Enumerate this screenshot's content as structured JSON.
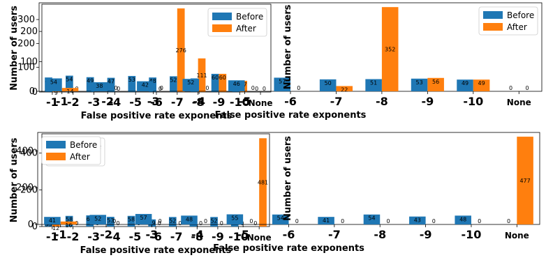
{
  "colors": {
    "before": "#1f77b4",
    "after": "#ff7f0e"
  },
  "chart_data": [
    {
      "type": "bar",
      "categories": [
        "-1",
        "-2",
        "-3",
        "-4",
        "-5",
        "-6",
        "-7",
        "-8",
        "-9",
        "-10",
        "None"
      ],
      "series": [
        {
          "name": "Before",
          "values": [
            48,
            54,
            49,
            47,
            53,
            48,
            52,
            45,
            60,
            37,
            0
          ]
        },
        {
          "name": "After",
          "values": [
            9,
            0,
            0,
            0,
            0,
            0,
            276,
            111,
            60,
            37,
            0
          ]
        }
      ],
      "xlabel": "False positive rate exponents",
      "ylabel": "Number of users",
      "ylim": [
        0,
        290
      ],
      "yticks": [
        0,
        100,
        200
      ],
      "legend": "top-right"
    },
    {
      "type": "bar",
      "categories": [
        "-1",
        "-2",
        "-3",
        "-4",
        "-5",
        "-6",
        "-7",
        "-8",
        "-9",
        "-10",
        "None"
      ],
      "series": [
        {
          "name": "Before",
          "values": [
            54,
            38,
            42,
            52,
            46,
            57,
            50,
            51,
            53,
            49,
            0
          ]
        },
        {
          "name": "After",
          "values": [
            14,
            0,
            0,
            0,
            0,
            0,
            22,
            352,
            56,
            49,
            0
          ]
        }
      ],
      "xlabel": "False positive rate exponents",
      "ylabel": "Number of users",
      "ylim": [
        0,
        370
      ],
      "yticks": [
        0,
        100,
        200,
        300
      ],
      "legend": "top-right"
    },
    {
      "type": "bar",
      "categories": [
        "-1",
        "-2",
        "-3",
        "-4",
        "-5",
        "-6",
        "-7",
        "-8",
        "-9",
        "-10",
        "None"
      ],
      "series": [
        {
          "name": "Before",
          "values": [
            33,
            58,
            61,
            53,
            58,
            39,
            52,
            43,
            52,
            44,
            0
          ]
        },
        {
          "name": "After",
          "values": [
            12,
            0,
            0,
            0,
            0,
            0,
            0,
            0,
            0,
            0,
            481
          ]
        }
      ],
      "xlabel": "False positive rate exponents",
      "ylabel": "Number of users",
      "ylim": [
        0,
        505
      ],
      "yticks": [
        0,
        200,
        400
      ],
      "legend": "top-left"
    },
    {
      "type": "bar",
      "categories": [
        "-1",
        "-2",
        "-3",
        "-4",
        "-5",
        "-6",
        "-7",
        "-8",
        "-9",
        "-10",
        "None"
      ],
      "series": [
        {
          "name": "Before",
          "values": [
            41,
            52,
            57,
            48,
            55,
            54,
            41,
            54,
            43,
            48,
            0
          ]
        },
        {
          "name": "After",
          "values": [
            16,
            0,
            0,
            0,
            0,
            0,
            0,
            0,
            0,
            0,
            477
          ]
        }
      ],
      "xlabel": "False positive rate exponents",
      "ylabel": "Number of users",
      "ylim": [
        0,
        500
      ],
      "yticks": [
        0,
        200,
        400
      ],
      "legend": "top-left"
    }
  ]
}
